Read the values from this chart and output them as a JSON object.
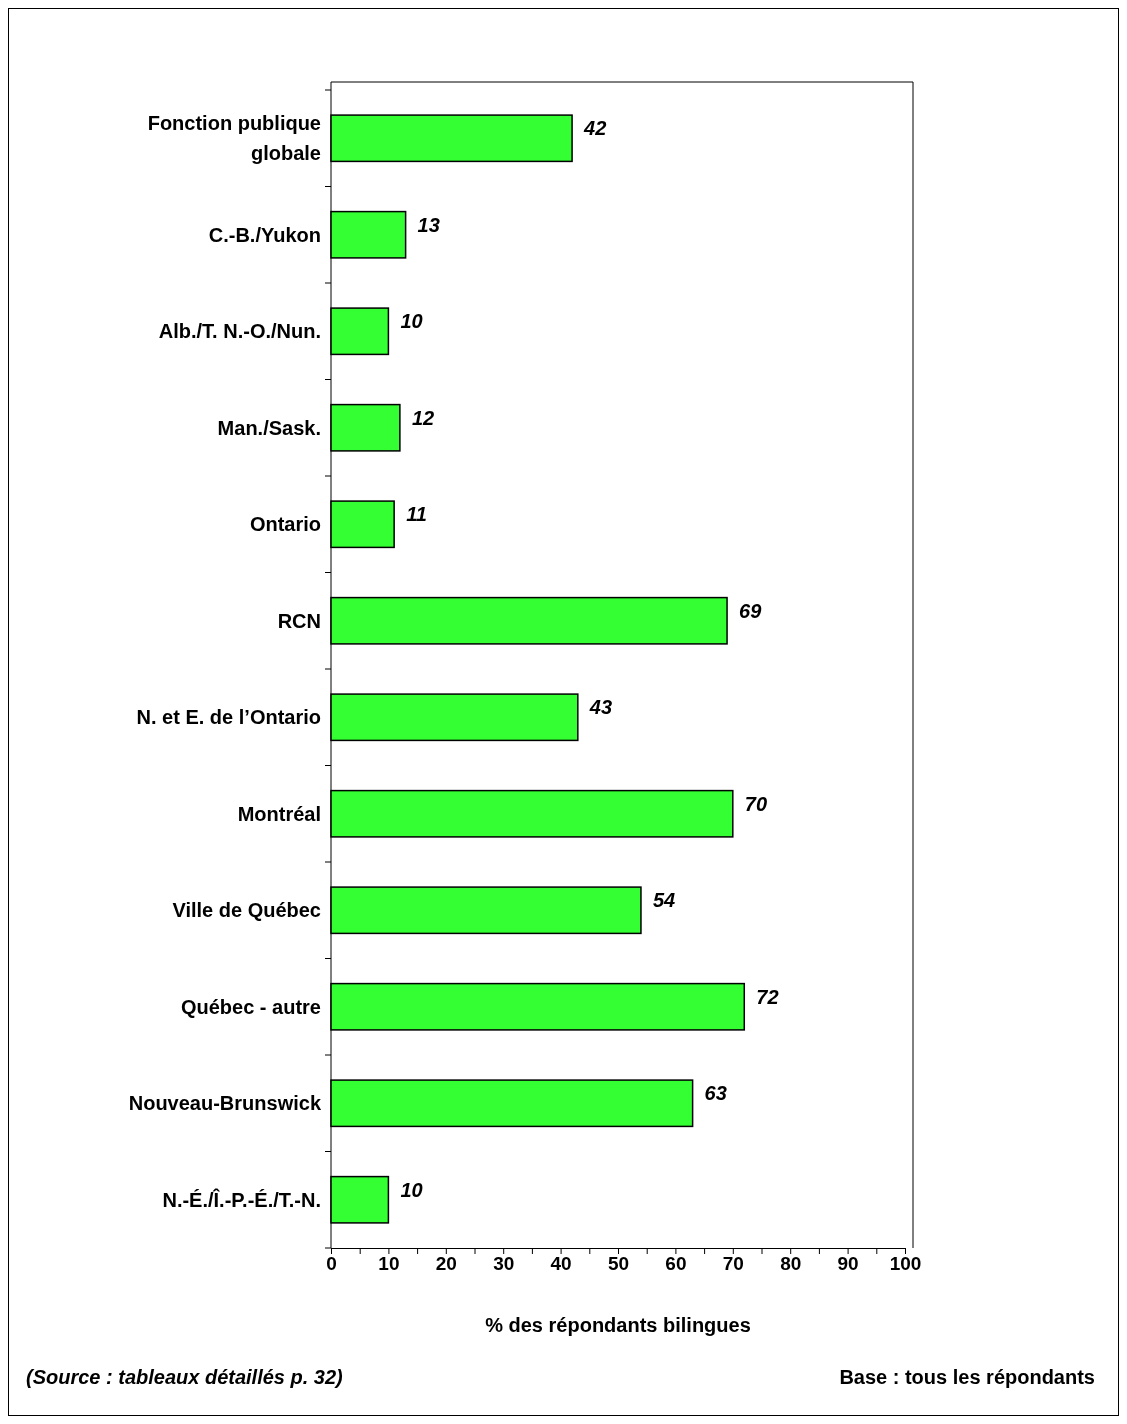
{
  "chart_data": {
    "type": "bar",
    "orientation": "horizontal",
    "xlabel": "% des répondants bilingues",
    "categories": [
      "Fonction publique globale",
      "C.-B./Yukon",
      "Alb./T. N.-O./Nun.",
      "Man./Sask.",
      "Ontario",
      "RCN",
      "N. et E. de l’Ontario",
      "Montréal",
      "Ville de Québec",
      "Québec - autre",
      "Nouveau-Brunswick",
      "N.-É./Î.-P.-É./T.-N."
    ],
    "values": [
      42,
      13,
      10,
      12,
      11,
      69,
      43,
      70,
      54,
      72,
      63,
      10
    ],
    "color": "#33ff33",
    "data_labels": true,
    "grid": false,
    "xlim": [
      0,
      100
    ],
    "xticks": [
      0,
      {
        "value": 5,
        "label": null
      },
      10,
      {
        "value": 15,
        "label": null
      },
      20,
      {
        "value": 25,
        "label": null
      },
      30,
      {
        "value": 35,
        "label": null
      },
      40,
      {
        "value": 45,
        "label": null
      },
      50,
      {
        "value": 55,
        "label": null
      },
      60,
      {
        "value": 65,
        "label": null
      },
      70,
      {
        "value": 75,
        "label": null
      },
      80,
      {
        "value": 85,
        "label": null
      },
      90,
      {
        "value": 95,
        "label": null
      },
      100
    ],
    "annotations": [
      "(Source : tableaux détaillés p. 32)",
      "Base : tous les répondants"
    ]
  }
}
